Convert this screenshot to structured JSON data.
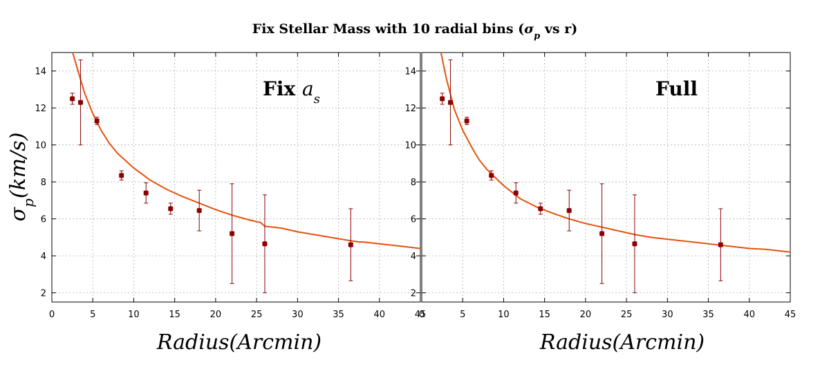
{
  "figure": {
    "title": "Fix Stellar Mass with 10 radial bins (σp vs r)",
    "ylabel": "σp(km/s)",
    "colors": {
      "curve": "#e8500c",
      "points": "#8b0000",
      "grid": "#b0b0b0"
    }
  },
  "chart_data": [
    {
      "type": "scatter",
      "panel_label": "Fix as",
      "xlabel": "Radius(Arcmin)",
      "ylabel": "σp(km/s)",
      "xlim": [
        0,
        45
      ],
      "ylim": [
        1.5,
        15
      ],
      "x_ticks": [
        "0",
        "5",
        "10",
        "15",
        "20",
        "25",
        "30",
        "35",
        "40",
        "45"
      ],
      "y_ticks": [
        "2",
        "4",
        "6",
        "8",
        "10",
        "12",
        "14"
      ],
      "grid": true,
      "series": [
        {
          "kind": "points_with_errors",
          "x": [
            2.5,
            3.5,
            5.5,
            8.5,
            11.5,
            14.5,
            18,
            22,
            26,
            36.5
          ],
          "y": [
            12.5,
            12.3,
            11.3,
            8.35,
            7.4,
            6.55,
            6.45,
            5.2,
            4.65,
            4.6
          ],
          "yerr": [
            0.3,
            2.3,
            0.2,
            0.25,
            0.55,
            0.3,
            1.1,
            2.7,
            2.65,
            1.95
          ]
        },
        {
          "kind": "model_curve",
          "x": [
            2.2,
            3,
            4,
            5,
            6,
            7,
            8,
            10,
            12,
            14,
            16,
            18,
            20,
            22,
            24,
            25.5,
            26,
            28,
            30,
            32,
            34,
            36,
            37.5,
            38,
            40,
            42,
            45
          ],
          "y": [
            15.5,
            14.3,
            12.8,
            11.7,
            10.8,
            10.1,
            9.55,
            8.75,
            8.1,
            7.6,
            7.2,
            6.85,
            6.5,
            6.2,
            5.95,
            5.8,
            5.6,
            5.5,
            5.3,
            5.15,
            5.0,
            4.85,
            4.75,
            4.75,
            4.65,
            4.55,
            4.4
          ]
        }
      ]
    },
    {
      "type": "scatter",
      "panel_label": "Full",
      "xlabel": "Radius(Arcmin)",
      "xlim": [
        0,
        45
      ],
      "ylim": [
        1.5,
        15
      ],
      "x_ticks": [
        "0",
        "5",
        "10",
        "15",
        "20",
        "25",
        "30",
        "35",
        "40",
        "45"
      ],
      "y_ticks": [
        "2",
        "4",
        "6",
        "8",
        "10",
        "12",
        "14"
      ],
      "grid": true,
      "series": [
        {
          "kind": "points_with_errors",
          "x": [
            2.5,
            3.5,
            5.5,
            8.5,
            11.5,
            14.5,
            18,
            22,
            26,
            36.5
          ],
          "y": [
            12.5,
            12.3,
            11.3,
            8.35,
            7.4,
            6.55,
            6.45,
            5.2,
            4.65,
            4.6
          ],
          "yerr": [
            0.3,
            2.3,
            0.2,
            0.25,
            0.55,
            0.3,
            1.1,
            2.7,
            2.65,
            1.95
          ]
        },
        {
          "kind": "model_curve",
          "x": [
            2.2,
            3,
            4,
            5,
            6,
            7,
            8,
            10,
            12,
            14,
            16,
            18,
            20,
            22,
            24,
            26,
            28,
            30,
            32,
            34,
            36,
            38,
            40,
            42,
            45
          ],
          "y": [
            15.3,
            13.6,
            11.9,
            10.8,
            9.95,
            9.2,
            8.65,
            7.8,
            7.1,
            6.65,
            6.3,
            6.0,
            5.75,
            5.55,
            5.35,
            5.15,
            5.0,
            4.9,
            4.8,
            4.7,
            4.6,
            4.5,
            4.4,
            4.35,
            4.2
          ]
        }
      ]
    }
  ]
}
